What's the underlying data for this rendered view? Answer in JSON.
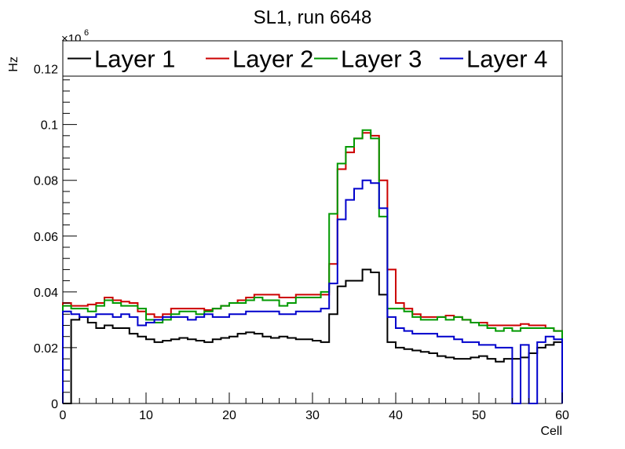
{
  "chart_data": {
    "type": "line",
    "title": "SL1, run 6648",
    "xlabel": "Cell",
    "ylabel": "Hz",
    "exponent_label": "×10",
    "exponent_power": "6",
    "xlim": [
      0,
      60
    ],
    "ylim": [
      0,
      0.13
    ],
    "x_ticks": [
      0,
      10,
      20,
      30,
      40,
      50,
      60
    ],
    "x_tick_labels": [
      "0",
      "10",
      "20",
      "30",
      "40",
      "50",
      "60"
    ],
    "y_ticks": [
      0,
      0.02,
      0.04,
      0.06,
      0.08,
      0.1,
      0.12
    ],
    "y_tick_labels": [
      "0",
      "0.02",
      "0.04",
      "0.06",
      "0.08",
      "0.1",
      "0.12"
    ],
    "grid": false,
    "legend_position": "top",
    "bin_edges": [
      0,
      1,
      2,
      3,
      4,
      5,
      6,
      7,
      8,
      9,
      10,
      11,
      12,
      13,
      14,
      15,
      16,
      17,
      18,
      19,
      20,
      21,
      22,
      23,
      24,
      25,
      26,
      27,
      28,
      29,
      30,
      31,
      32,
      33,
      34,
      35,
      36,
      37,
      38,
      39,
      40,
      41,
      42,
      43,
      44,
      45,
      46,
      47,
      48,
      49,
      50,
      51,
      52,
      53,
      54,
      55,
      56,
      57,
      58,
      59,
      60
    ],
    "series": [
      {
        "name": "Layer 1",
        "color": "#000000",
        "values": [
          0,
          0.03,
          0.031,
          0.029,
          0.027,
          0.028,
          0.027,
          0.027,
          0.025,
          0.024,
          0.023,
          0.022,
          0.0225,
          0.023,
          0.0235,
          0.023,
          0.0225,
          0.022,
          0.023,
          0.0235,
          0.024,
          0.025,
          0.0255,
          0.025,
          0.024,
          0.0235,
          0.024,
          0.0235,
          0.023,
          0.023,
          0.0225,
          0.022,
          0.032,
          0.042,
          0.044,
          0.044,
          0.048,
          0.047,
          0.039,
          0.022,
          0.02,
          0.0195,
          0.019,
          0.0185,
          0.018,
          0.017,
          0.0165,
          0.016,
          0.016,
          0.0165,
          0.017,
          0.016,
          0.015,
          0.016,
          0.016,
          0.0165,
          0.018,
          0.02,
          0.021,
          0.022
        ]
      },
      {
        "name": "Layer 2",
        "color": "#cc0000",
        "values": [
          0.036,
          0.035,
          0.035,
          0.0355,
          0.036,
          0.038,
          0.037,
          0.0365,
          0.036,
          0.033,
          0.032,
          0.031,
          0.032,
          0.034,
          0.034,
          0.034,
          0.034,
          0.0335,
          0.034,
          0.035,
          0.036,
          0.037,
          0.038,
          0.039,
          0.039,
          0.039,
          0.038,
          0.038,
          0.039,
          0.039,
          0.039,
          0.039,
          0.05,
          0.084,
          0.09,
          0.095,
          0.097,
          0.096,
          0.08,
          0.048,
          0.036,
          0.034,
          0.032,
          0.031,
          0.031,
          0.031,
          0.0315,
          0.031,
          0.03,
          0.029,
          0.029,
          0.028,
          0.028,
          0.028,
          0.028,
          0.0285,
          0.028,
          0.028,
          0.027,
          0.026
        ]
      },
      {
        "name": "Layer 3",
        "color": "#009900",
        "values": [
          0.035,
          0.034,
          0.034,
          0.033,
          0.035,
          0.037,
          0.036,
          0.035,
          0.035,
          0.034,
          0.03,
          0.029,
          0.03,
          0.032,
          0.033,
          0.033,
          0.032,
          0.033,
          0.034,
          0.035,
          0.036,
          0.036,
          0.037,
          0.038,
          0.037,
          0.037,
          0.035,
          0.036,
          0.038,
          0.038,
          0.038,
          0.04,
          0.068,
          0.086,
          0.092,
          0.095,
          0.098,
          0.095,
          0.067,
          0.034,
          0.034,
          0.033,
          0.031,
          0.03,
          0.03,
          0.031,
          0.03,
          0.031,
          0.03,
          0.029,
          0.028,
          0.027,
          0.026,
          0.027,
          0.026,
          0.027,
          0.027,
          0.027,
          0.027,
          0.026
        ]
      },
      {
        "name": "Layer 4",
        "color": "#0000cc",
        "values": [
          0.033,
          0.032,
          0.031,
          0.031,
          0.032,
          0.032,
          0.031,
          0.032,
          0.031,
          0.028,
          0.029,
          0.03,
          0.031,
          0.031,
          0.031,
          0.03,
          0.031,
          0.032,
          0.031,
          0.031,
          0.032,
          0.032,
          0.033,
          0.033,
          0.033,
          0.033,
          0.032,
          0.032,
          0.033,
          0.033,
          0.033,
          0.034,
          0.043,
          0.066,
          0.073,
          0.077,
          0.08,
          0.079,
          0.07,
          0.031,
          0.027,
          0.026,
          0.025,
          0.025,
          0.025,
          0.024,
          0.024,
          0.023,
          0.022,
          0.022,
          0.021,
          0.021,
          0.02,
          0.02,
          0,
          0.021,
          0,
          0.022,
          0.024,
          0.023
        ]
      }
    ]
  }
}
